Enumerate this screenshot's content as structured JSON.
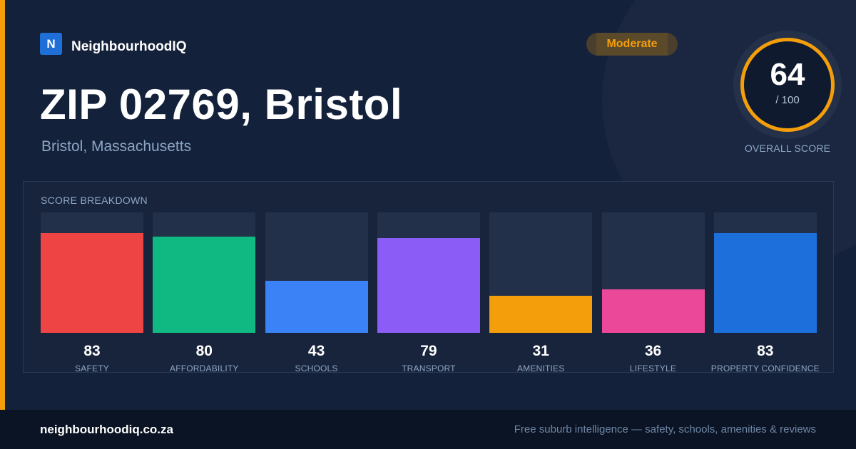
{
  "brand": {
    "logo_letter": "N",
    "name": "NeighbourhoodIQ"
  },
  "header": {
    "title": "ZIP 02769, Bristol",
    "subtitle": "Bristol, Massachusetts"
  },
  "badge": {
    "label": "Moderate",
    "color": "#f59e0b"
  },
  "overall": {
    "score": "64",
    "max_label": "/ 100",
    "caption": "OVERALL SCORE",
    "ring_color": "#f59e0b"
  },
  "breakdown": {
    "title": "SCORE BREAKDOWN",
    "max": 100,
    "items": [
      {
        "label": "SAFETY",
        "value": 83,
        "color": "#ef4444"
      },
      {
        "label": "AFFORDABILITY",
        "value": 80,
        "color": "#10b981"
      },
      {
        "label": "SCHOOLS",
        "value": 43,
        "color": "#3b82f6"
      },
      {
        "label": "TRANSPORT",
        "value": 79,
        "color": "#8b5cf6"
      },
      {
        "label": "AMENITIES",
        "value": 31,
        "color": "#f59e0b"
      },
      {
        "label": "LIFESTYLE",
        "value": 36,
        "color": "#ec4899"
      },
      {
        "label": "PROPERTY CONFIDENCE",
        "value": 83,
        "color": "#1d6fdb"
      }
    ]
  },
  "footer": {
    "url": "neighbourhoodiq.co.za",
    "tagline": "Free suburb intelligence — safety, schools, amenities & reviews"
  }
}
